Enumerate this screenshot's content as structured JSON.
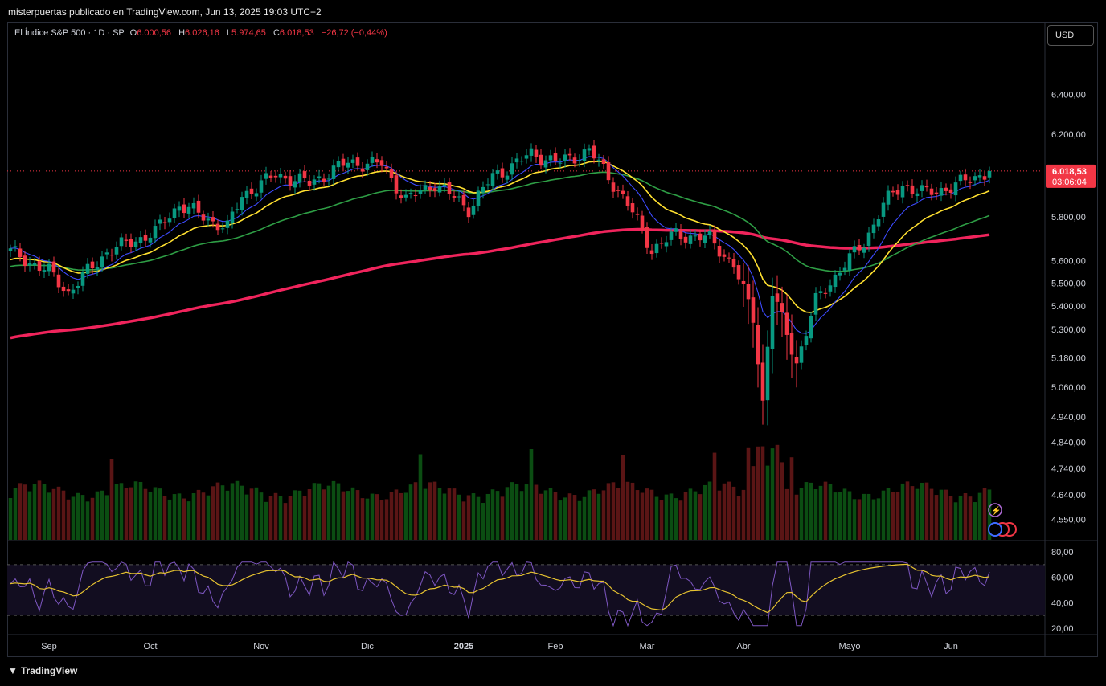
{
  "header": {
    "publisher_line": "misterpuertas publicado en TradingView.com, Jun 13, 2025 19:03 UTC+2"
  },
  "legend": {
    "symbol": "El Índice S&P 500 · 1D · SP",
    "open_label": "O",
    "open": "6.000,56",
    "high_label": "H",
    "high": "6.026,16",
    "low_label": "L",
    "low": "5.974,65",
    "close_label": "C",
    "close": "6.018,53",
    "change": "−26,72 (−0,44%)"
  },
  "currency_button": "USD",
  "price_tag": {
    "price": "6.018,53",
    "countdown": "03:06:04",
    "color": "#f23645"
  },
  "footer": {
    "brand": "TradingView"
  },
  "colors": {
    "up": "#089981",
    "down": "#f23645",
    "ema_fast": "#3d4bff",
    "ema_mid": "#ffe030",
    "ema_slow": "#2e9e45",
    "ema_long": "#f0245c",
    "rsi": "#7e57c2",
    "rsi_ma": "#e6c230"
  },
  "chart_data": {
    "type": "candlestick",
    "scale": "log",
    "price_ticks": [
      "6.400,00",
      "6.200,00",
      "5.800,00",
      "5.600,00",
      "5.500,00",
      "5.400,00",
      "5.300,00",
      "5.180,00",
      "5.060,00",
      "4.940,00",
      "4.840,00",
      "4.740,00",
      "4.640,00",
      "4.550,00"
    ],
    "time_labels": [
      "Sep",
      "Oct",
      "Nov",
      "Dic",
      "2025",
      "Feb",
      "Mar",
      "Abr",
      "Mayo",
      "Jun"
    ],
    "anchors": [
      {
        "t": 0,
        "c": 5640
      },
      {
        "t": 8,
        "c": 5550
      },
      {
        "t": 12,
        "c": 5460
      },
      {
        "t": 20,
        "c": 5640
      },
      {
        "t": 30,
        "c": 5730
      },
      {
        "t": 35,
        "c": 5860
      },
      {
        "t": 41,
        "c": 5790
      },
      {
        "t": 45,
        "c": 5750
      },
      {
        "t": 48,
        "c": 5900
      },
      {
        "t": 55,
        "c": 6000
      },
      {
        "t": 62,
        "c": 5960
      },
      {
        "t": 70,
        "c": 6060
      },
      {
        "t": 77,
        "c": 6050
      },
      {
        "t": 82,
        "c": 5880
      },
      {
        "t": 88,
        "c": 5960
      },
      {
        "t": 95,
        "c": 5840
      },
      {
        "t": 100,
        "c": 5990
      },
      {
        "t": 108,
        "c": 6100
      },
      {
        "t": 114,
        "c": 6060
      },
      {
        "t": 120,
        "c": 6120
      },
      {
        "t": 124,
        "c": 5990
      },
      {
        "t": 128,
        "c": 5860
      },
      {
        "t": 133,
        "c": 5650
      },
      {
        "t": 138,
        "c": 5720
      },
      {
        "t": 145,
        "c": 5700
      },
      {
        "t": 150,
        "c": 5580
      },
      {
        "t": 154,
        "c": 5350
      },
      {
        "t": 156,
        "c": 5000
      },
      {
        "t": 158,
        "c": 5460
      },
      {
        "t": 161,
        "c": 5280
      },
      {
        "t": 163,
        "c": 5160
      },
      {
        "t": 167,
        "c": 5420
      },
      {
        "t": 172,
        "c": 5560
      },
      {
        "t": 177,
        "c": 5680
      },
      {
        "t": 181,
        "c": 5860
      },
      {
        "t": 185,
        "c": 5950
      },
      {
        "t": 190,
        "c": 5910
      },
      {
        "t": 196,
        "c": 5950
      },
      {
        "t": 201,
        "c": 6000
      },
      {
        "t": 203,
        "c": 6018.53
      }
    ],
    "rsi_ticks": [
      "80,00",
      "60,00",
      "40,00",
      "20,00"
    ],
    "rsi_levels": [
      70,
      50,
      30
    ]
  }
}
